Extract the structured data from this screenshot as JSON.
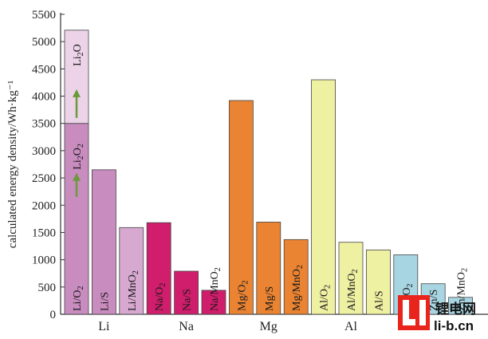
{
  "chart_data": {
    "type": "bar",
    "ylabel": "calculated energy density/Wh·kg⁻¹",
    "ylim": [
      0,
      5500
    ],
    "yticks": [
      0,
      500,
      1000,
      1500,
      2000,
      2500,
      3000,
      3500,
      4000,
      4500,
      5000,
      5500
    ],
    "grid": false,
    "groups": [
      {
        "label": "Li",
        "bars": [
          {
            "label": "Li/O2",
            "value": 3500,
            "color": "#c88cbf"
          },
          {
            "label": "Li/S",
            "value": 2650,
            "color": "#c88cbf"
          },
          {
            "label": "Li/MnO2",
            "value": 1590,
            "color": "#d7a9d0"
          }
        ]
      },
      {
        "label": "Na",
        "bars": [
          {
            "label": "Na/O2",
            "value": 1680,
            "color": "#d01e6c"
          },
          {
            "label": "Na/S",
            "value": 790,
            "color": "#d01e6c"
          },
          {
            "label": "Na/MnO2",
            "value": 440,
            "color": "#d01e6c"
          }
        ]
      },
      {
        "label": "Mg",
        "bars": [
          {
            "label": "Mg/O2",
            "value": 3920,
            "color": "#ea8432"
          },
          {
            "label": "Mg/S",
            "value": 1690,
            "color": "#ea8432"
          },
          {
            "label": "Mg/MnO2",
            "value": 1370,
            "color": "#ea8432"
          }
        ]
      },
      {
        "label": "Al",
        "bars": [
          {
            "label": "Al/O2",
            "value": 4300,
            "color": "#eef0a2"
          },
          {
            "label": "Al/MnO2",
            "value": 1320,
            "color": "#eef0a2"
          },
          {
            "label": "Al/S",
            "value": 1180,
            "color": "#eef0a2"
          }
        ]
      },
      {
        "label": "",
        "bars": [
          {
            "label": "Zn/O2",
            "value": 1090,
            "color": "#a8d5e2"
          },
          {
            "label": "Zn/S",
            "value": 560,
            "color": "#a8d5e2"
          },
          {
            "label": "Zn/MnO2",
            "value": 310,
            "color": "#a8d5e2"
          }
        ]
      }
    ],
    "li_extension": {
      "from": 3500,
      "to": 5210,
      "color": "#ecd3e8"
    },
    "annotations": [
      {
        "text": "Li2O",
        "sub": "2",
        "display": [
          "Li",
          "2",
          "O"
        ]
      },
      {
        "text": "Li2O2",
        "display": [
          "Li",
          "2",
          "O",
          "2"
        ]
      }
    ]
  },
  "watermark": {
    "cn": "锂电网",
    "en": "li-b.cn",
    "logo": "LI"
  }
}
